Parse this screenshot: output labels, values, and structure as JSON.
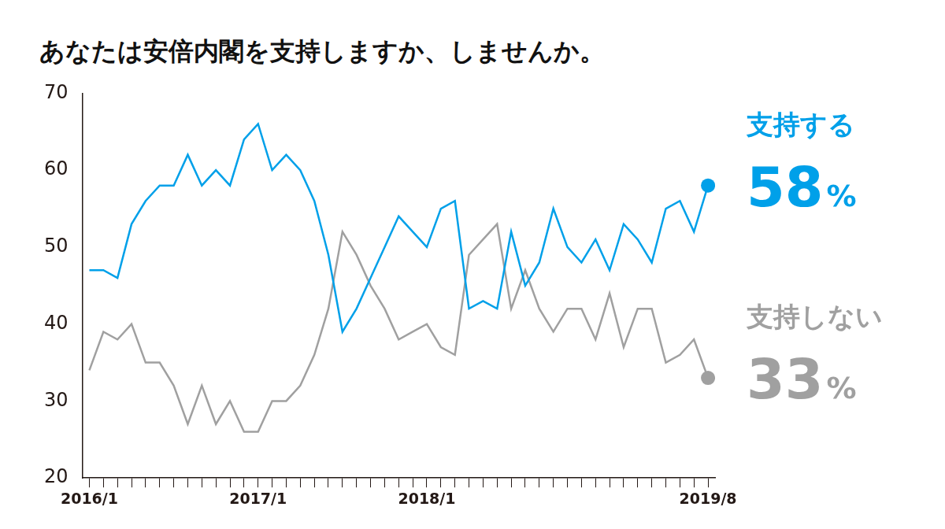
{
  "chart_data": {
    "type": "line",
    "title": "あなたは安倍内閣を支持しますか、しませんか。",
    "categories": [
      "2016/1",
      null,
      null,
      null,
      null,
      null,
      null,
      null,
      null,
      null,
      null,
      null,
      "2017/1",
      null,
      null,
      null,
      null,
      null,
      null,
      null,
      null,
      null,
      null,
      null,
      "2018/1",
      null,
      null,
      null,
      null,
      null,
      null,
      null,
      null,
      null,
      null,
      null,
      null,
      null,
      null,
      null,
      null,
      null,
      null,
      null,
      "2019/8"
    ],
    "series": [
      {
        "name": "支持する",
        "color": "#00a0e9",
        "marker": "end",
        "values": [
          47,
          47,
          46,
          53,
          56,
          58,
          58,
          62,
          58,
          60,
          58,
          64,
          66,
          60,
          62,
          60,
          56,
          49,
          39,
          42,
          46,
          50,
          54,
          52,
          50,
          55,
          56,
          42,
          43,
          42,
          52,
          45,
          48,
          55,
          50,
          48,
          51,
          47,
          53,
          51,
          48,
          55,
          56,
          52,
          58
        ]
      },
      {
        "name": "支持しない",
        "color": "#a0a0a0",
        "marker": "end",
        "values": [
          34,
          39,
          38,
          40,
          35,
          35,
          32,
          27,
          32,
          27,
          30,
          26,
          26,
          30,
          30,
          32,
          36,
          42,
          52,
          49,
          45,
          42,
          38,
          39,
          40,
          37,
          36,
          49,
          51,
          53,
          42,
          47,
          42,
          39,
          42,
          42,
          38,
          44,
          37,
          42,
          42,
          35,
          36,
          38,
          33
        ]
      }
    ],
    "annotations": [
      {
        "series": "支持する",
        "value": 58,
        "label": "58%"
      },
      {
        "series": "支持しない",
        "value": 33,
        "label": "33%"
      }
    ],
    "ylim": [
      20,
      70
    ],
    "yticks": [
      20,
      30,
      40,
      50,
      60,
      70
    ],
    "grid": false
  }
}
